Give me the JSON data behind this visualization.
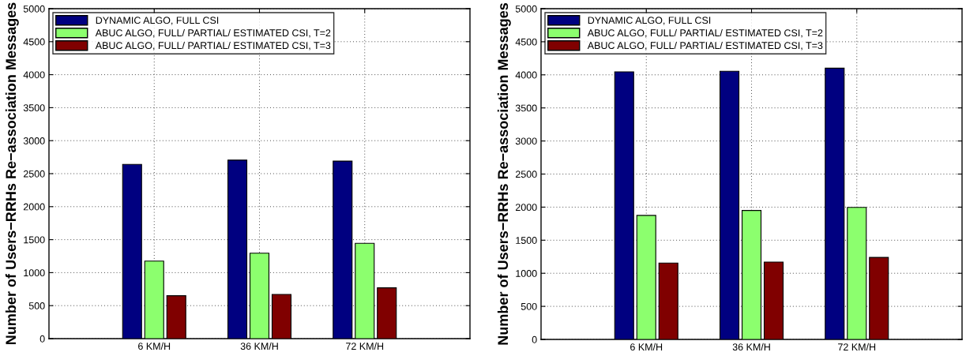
{
  "chart_data": [
    {
      "type": "bar",
      "ylabel": "Number of Users−RRHs Re−association Messages",
      "categories": [
        "6 KM/H",
        "36 KM/H",
        "72 KM/H"
      ],
      "ylim": [
        0,
        5000
      ],
      "yticks": [
        0,
        500,
        1000,
        1500,
        2000,
        2500,
        3000,
        3500,
        4000,
        4500,
        5000
      ],
      "grid": true,
      "legend": "top left",
      "series": [
        {
          "name": "DYNAMIC ALGO, FULL CSI",
          "color": "#000080",
          "values": [
            2640,
            2705,
            2690
          ]
        },
        {
          "name": "ABUC ALGO, FULL/ PARTIAL/ ESTIMATED CSI, T=2",
          "color": "#8cff6e",
          "values": [
            1175,
            1295,
            1445
          ]
        },
        {
          "name": "ABUC ALGO, FULL/ PARTIAL/ ESTIMATED CSI, T=3",
          "color": "#800000",
          "values": [
            650,
            670,
            770
          ]
        }
      ]
    },
    {
      "type": "bar",
      "ylabel": "Number of Users−RRHs Re−association Messages",
      "categories": [
        "6 KM/H",
        "36 KM/H",
        "72 KM/H"
      ],
      "ylim": [
        0,
        5000
      ],
      "yticks": [
        0,
        500,
        1000,
        1500,
        2000,
        2500,
        3000,
        3500,
        4000,
        4500,
        5000
      ],
      "grid": true,
      "legend": "top left",
      "series": [
        {
          "name": "DYNAMIC ALGO, FULL CSI",
          "color": "#000080",
          "values": [
            4045,
            4055,
            4100
          ]
        },
        {
          "name": "ABUC ALGO, FULL/ PARTIAL/ ESTIMATED CSI, T=2",
          "color": "#8cff6e",
          "values": [
            1875,
            1950,
            1995
          ]
        },
        {
          "name": "ABUC ALGO, FULL/ PARTIAL/ ESTIMATED CSI, T=3",
          "color": "#800000",
          "values": [
            1155,
            1170,
            1240
          ]
        }
      ]
    }
  ]
}
